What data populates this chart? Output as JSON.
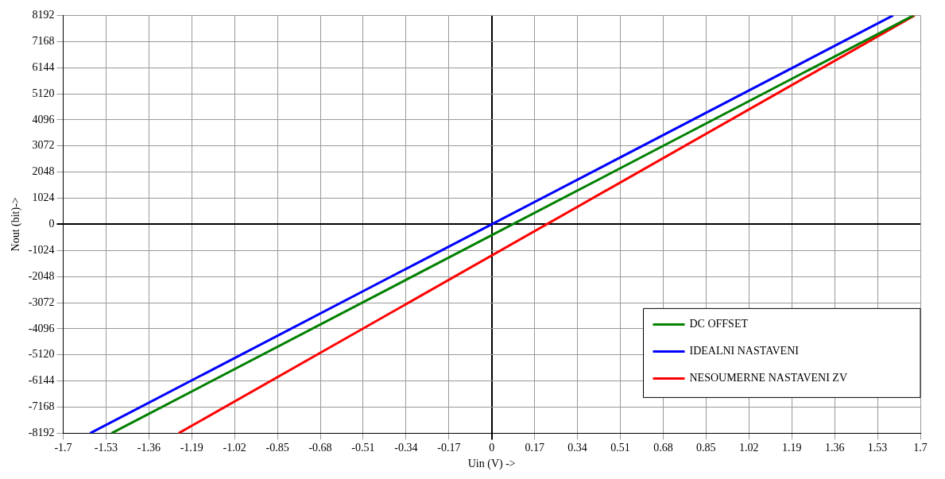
{
  "chart_data": {
    "type": "line",
    "xlabel": "Uin (V) ->",
    "ylabel": "Nout (bit)->",
    "xlim": [
      -1.7,
      1.7
    ],
    "xticks": [
      -1.7,
      -1.53,
      -1.36,
      -1.19,
      -1.02,
      -0.85,
      -0.68,
      -0.51,
      -0.34,
      -0.17,
      0,
      0.17,
      0.34,
      0.51,
      0.68,
      0.85,
      1.02,
      1.19,
      1.36,
      1.53,
      1.7
    ],
    "ylim": [
      -8192,
      8192
    ],
    "yticks": [
      -8192,
      -7168,
      -6144,
      -5120,
      -4096,
      -3072,
      -2048,
      -1024,
      0,
      1024,
      2048,
      3072,
      4096,
      5120,
      6144,
      7168,
      8192
    ],
    "grid": true,
    "legend": "bottom right",
    "marker": "none",
    "line_style": "solid",
    "series": [
      {
        "name": "DC OFFSET",
        "color": "#008000",
        "x": [
          -1.508,
          1.673
        ],
        "values": [
          -8192,
          8192
        ]
      },
      {
        "name": "IDEALNI NASTAVENI",
        "color": "#0000ff",
        "x": [
          -1.593,
          1.592
        ],
        "values": [
          -8192,
          8192
        ]
      },
      {
        "name": "NESOUMERNE NASTAVENI ZV",
        "color": "#ff0000",
        "x": [
          -1.242,
          1.677
        ],
        "values": [
          -8192,
          8192
        ]
      }
    ]
  }
}
